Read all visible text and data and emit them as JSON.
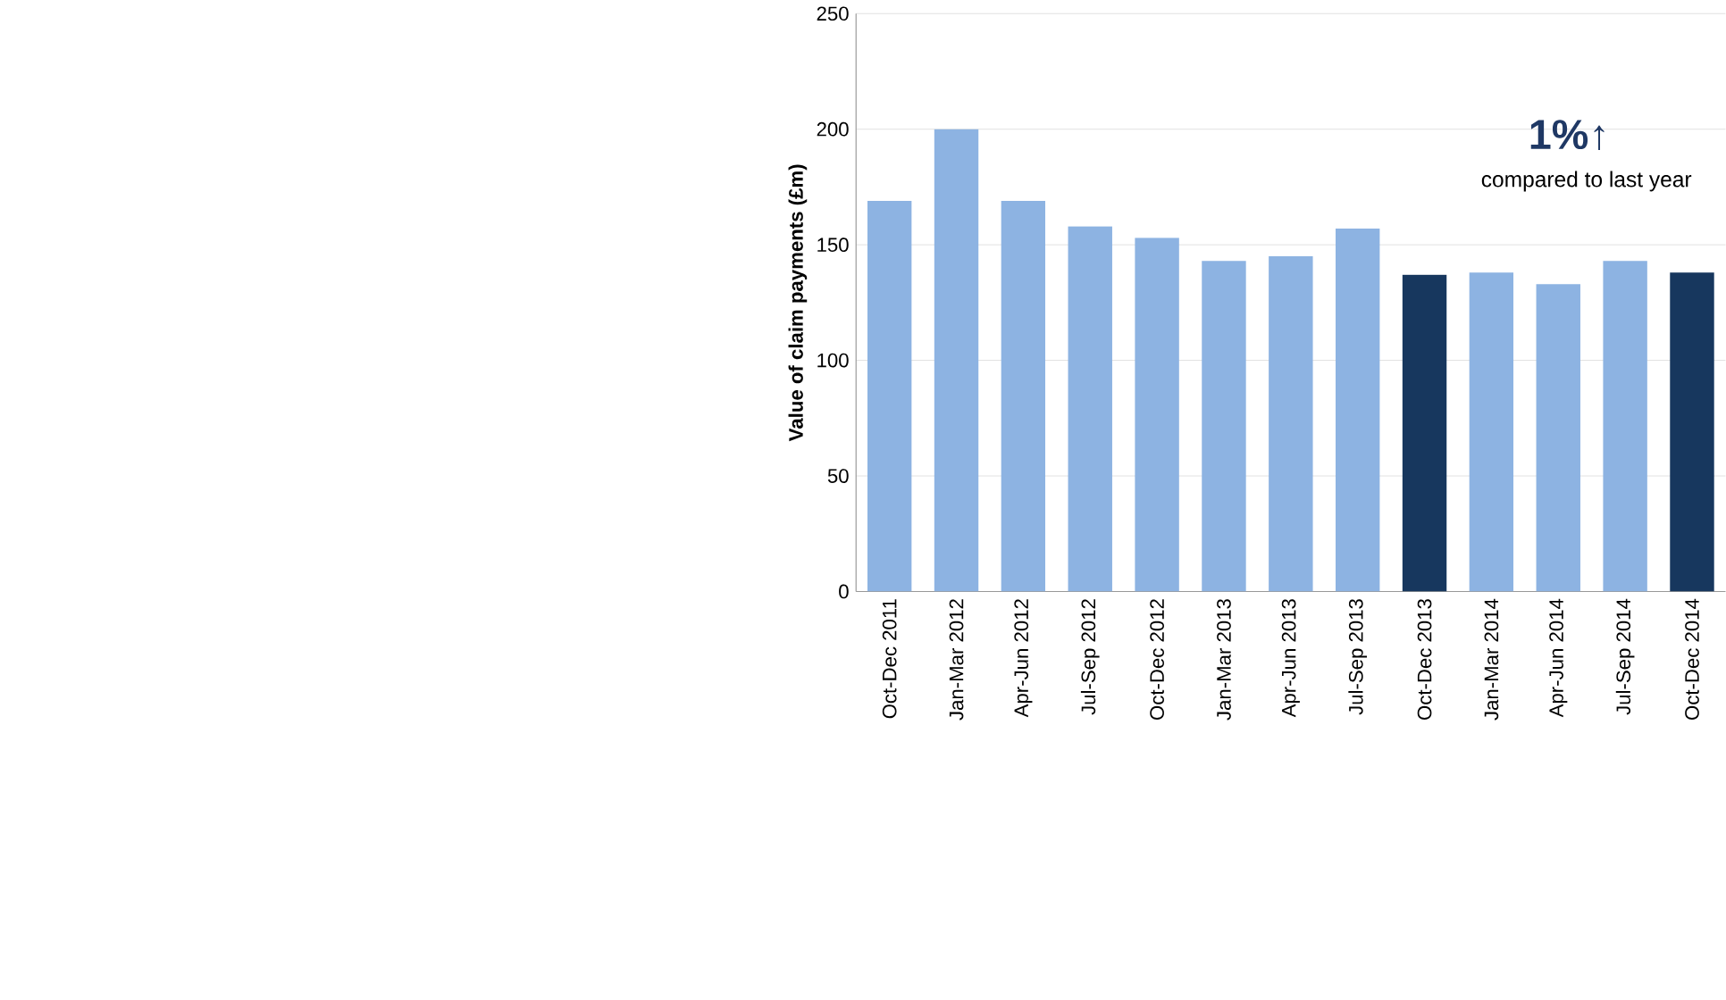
{
  "chart_data": {
    "type": "bar",
    "ylabel": "Value of claim payments (£m)",
    "categories": [
      "Oct-Dec 2011",
      "Jan-Mar 2012",
      "Apr-Jun 2012",
      "Jul-Sep 2012",
      "Oct-Dec 2012",
      "Jan-Mar 2013",
      "Apr-Jun 2013",
      "Jul-Sep 2013",
      "Oct-Dec 2013",
      "Jan-Mar 2014",
      "Apr-Jun 2014",
      "Jul-Sep 2014",
      "Oct-Dec 2014"
    ],
    "values": [
      169,
      200,
      169,
      158,
      153,
      143,
      145,
      157,
      137,
      138,
      133,
      143,
      138
    ],
    "colors": [
      "#8db3e2",
      "#8db3e2",
      "#8db3e2",
      "#8db3e2",
      "#8db3e2",
      "#8db3e2",
      "#8db3e2",
      "#8db3e2",
      "#17375e",
      "#8db3e2",
      "#8db3e2",
      "#8db3e2",
      "#17375e"
    ],
    "ylim": [
      0,
      250
    ],
    "yticks": [
      0,
      50,
      100,
      150,
      200,
      250
    ],
    "grid": "y",
    "annotations": [
      "**1%**↑",
      "compared to last year"
    ]
  }
}
